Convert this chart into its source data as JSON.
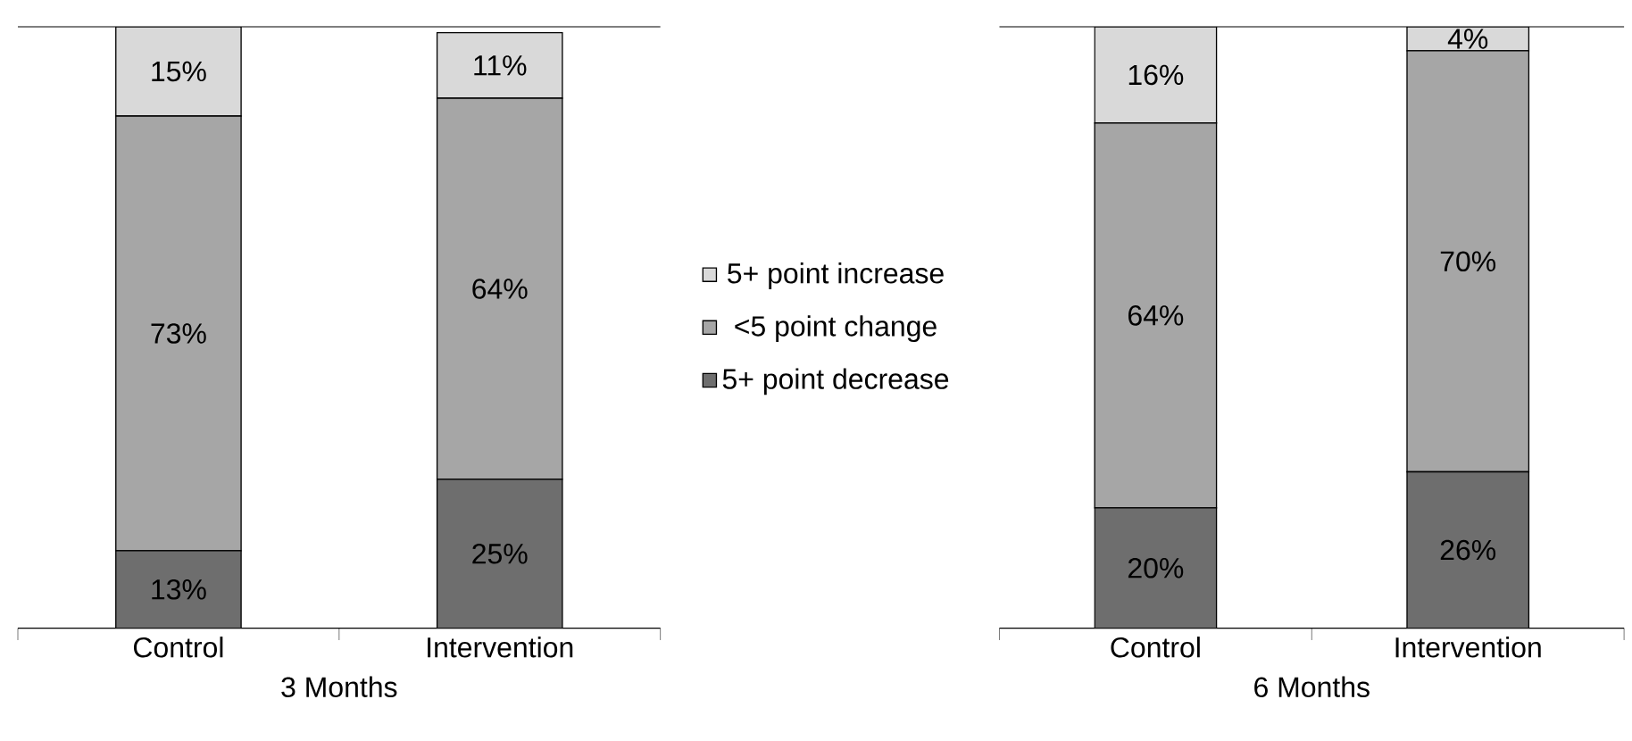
{
  "chart_data": [
    {
      "type": "bar",
      "stacked": true,
      "xlabel": "3 Months",
      "categories": [
        "Control",
        "Intervention"
      ],
      "ylim": [
        0,
        101
      ],
      "tick_labels": "x",
      "legend": false,
      "series": [
        {
          "color": "#6e6e6e",
          "values": [
            13,
            25
          ],
          "value_labels": [
            "13%",
            "25%"
          ]
        },
        {
          "color": "#a6a6a6",
          "values": [
            73,
            64
          ],
          "value_labels": [
            "73%",
            "64%"
          ]
        },
        {
          "color": "#d9d9d9",
          "values": [
            15,
            11
          ],
          "value_labels": [
            "15%",
            "11%"
          ]
        }
      ]
    },
    {
      "type": "bar",
      "stacked": true,
      "xlabel": "6 Months",
      "categories": [
        "Control",
        "Intervention"
      ],
      "ylim": [
        0,
        100
      ],
      "tick_labels": "x",
      "legend": "left",
      "series": [
        {
          "name": "5+ point decrease",
          "color": "#6e6e6e",
          "values": [
            20,
            26
          ],
          "value_labels": [
            "20%",
            "26%"
          ]
        },
        {
          "name": "<5 point change",
          "color": "#a6a6a6",
          "values": [
            64,
            70
          ],
          "value_labels": [
            "64%",
            "70%"
          ]
        },
        {
          "name": "5+ point increase",
          "color": "#d9d9d9",
          "values": [
            16,
            4
          ],
          "value_labels": [
            "16%",
            "4%"
          ]
        }
      ]
    }
  ]
}
